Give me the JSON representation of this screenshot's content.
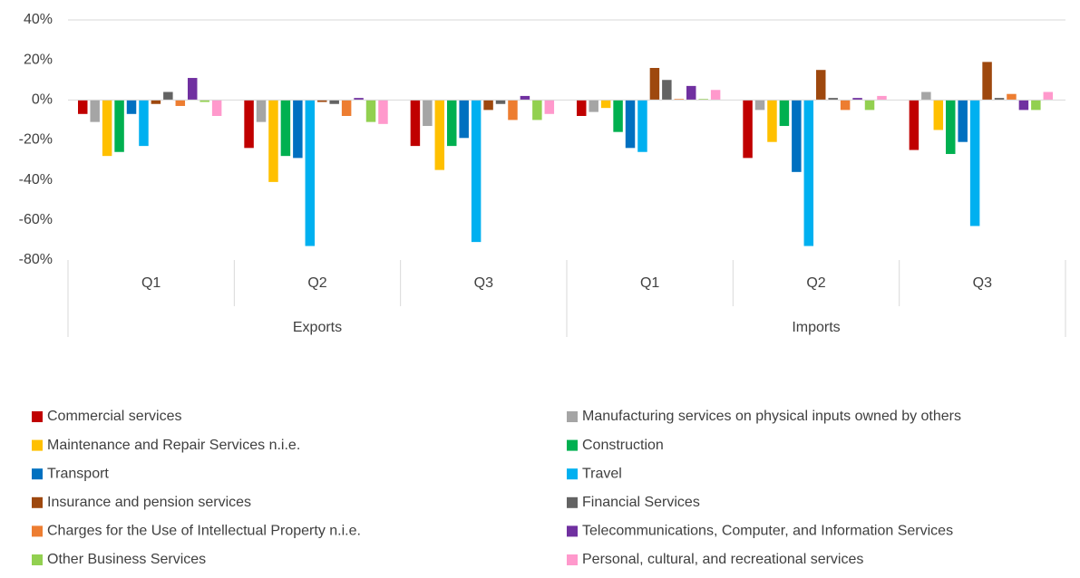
{
  "chart_data": {
    "type": "bar",
    "categories": [
      "Q1",
      "Q2",
      "Q3",
      "Q1",
      "Q2",
      "Q3"
    ],
    "groups": [
      "Exports",
      "Imports"
    ],
    "ylim": [
      -80,
      40
    ],
    "yticks": [
      {
        "value": -80,
        "label": "-80%"
      },
      {
        "value": -60,
        "label": "-60%"
      },
      {
        "value": -40,
        "label": "-40%"
      },
      {
        "value": -20,
        "label": "-20%"
      },
      {
        "value": 0,
        "label": "0%"
      },
      {
        "value": 20,
        "label": "20%"
      },
      {
        "value": 40,
        "label": "40%"
      }
    ],
    "grid": false,
    "legend": "bottom",
    "series": [
      {
        "name": "Commercial services",
        "color": "#c00000",
        "values": [
          -7,
          -24,
          -23,
          -8,
          -29,
          -25
        ]
      },
      {
        "name": "Manufacturing services on physical inputs owned by others",
        "color": "#a5a5a5",
        "values": [
          -11,
          -11,
          -13,
          -6,
          -5,
          4
        ]
      },
      {
        "name": "Maintenance and Repair Services n.i.e.",
        "color": "#ffc000",
        "values": [
          -28,
          -41,
          -35,
          -4,
          -21,
          -15
        ]
      },
      {
        "name": "Construction",
        "color": "#00b050",
        "values": [
          -26,
          -28,
          -23,
          -16,
          -13,
          -27
        ]
      },
      {
        "name": "Transport",
        "color": "#0070c0",
        "values": [
          -7,
          -29,
          -19,
          -24,
          -36,
          -21
        ]
      },
      {
        "name": "Travel",
        "color": "#00b0f0",
        "values": [
          -23,
          -73,
          -71,
          -26,
          -73,
          -63
        ]
      },
      {
        "name": "Insurance and pension services",
        "color": "#9e480e",
        "values": [
          -2,
          -1,
          -5,
          16,
          15,
          19
        ]
      },
      {
        "name": "Financial Services",
        "color": "#636363",
        "values": [
          4,
          -2,
          -2,
          10,
          1,
          1
        ]
      },
      {
        "name": "Charges for the Use of Intellectual Property n.i.e.",
        "color": "#ed7d31",
        "values": [
          -3,
          -8,
          -10,
          0.5,
          -5,
          3
        ]
      },
      {
        "name": "Telecommunications, Computer, and Information Services",
        "color": "#7030a0",
        "values": [
          11,
          1,
          2,
          7,
          1,
          -5
        ]
      },
      {
        "name": "Other Business Services",
        "color": "#92d050",
        "values": [
          -1,
          -11,
          -10,
          0.5,
          -5,
          -5
        ]
      },
      {
        "name": "Personal, cultural, and recreational services",
        "color": "#ff99cc",
        "values": [
          -8,
          -12,
          -7,
          5,
          2,
          4
        ]
      }
    ]
  }
}
